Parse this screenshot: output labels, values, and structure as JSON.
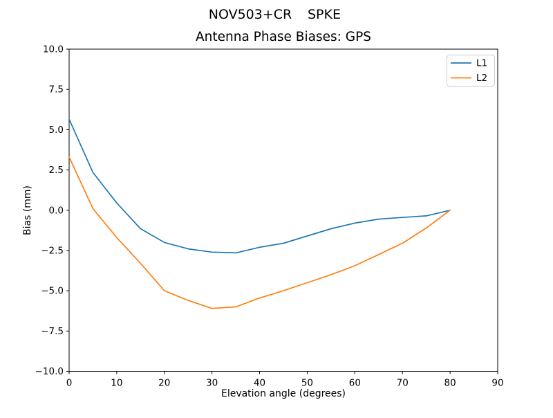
{
  "window": {
    "background": "#ffffff",
    "frame_color": "#000000"
  },
  "header": {
    "suptitle_left": "NOV503+CR",
    "suptitle_right": "SPKE"
  },
  "chart_data": {
    "type": "line",
    "title": "Antenna Phase Biases: GPS",
    "xlabel": "Elevation angle (degrees)",
    "ylabel": "Bias (mm)",
    "xlim": [
      0,
      90
    ],
    "ylim": [
      -10,
      10
    ],
    "x_ticks": [
      "0",
      "10",
      "20",
      "30",
      "40",
      "50",
      "60",
      "70",
      "80",
      "90"
    ],
    "y_ticks": [
      "10.0",
      "7.5",
      "5.0",
      "2.5",
      "0.0",
      "−2.5",
      "−5.0",
      "−7.5",
      "−10.0"
    ],
    "grid": false,
    "legend_position": "upper right",
    "x": [
      0,
      5,
      10,
      15,
      20,
      25,
      30,
      35,
      40,
      45,
      50,
      55,
      60,
      65,
      70,
      75,
      80
    ],
    "series": [
      {
        "name": "L1",
        "color": "#1f77b4",
        "values": [
          5.65,
          2.35,
          0.45,
          -1.15,
          -2.0,
          -2.4,
          -2.6,
          -2.65,
          -2.3,
          -2.05,
          -1.6,
          -1.15,
          -0.8,
          -0.55,
          -0.45,
          -0.35,
          0.0
        ]
      },
      {
        "name": "L2",
        "color": "#ff7f0e",
        "values": [
          3.3,
          0.1,
          -1.7,
          -3.3,
          -5.0,
          -5.6,
          -6.1,
          -6.0,
          -5.45,
          -5.0,
          -4.5,
          -4.0,
          -3.45,
          -2.75,
          -2.05,
          -1.1,
          0.0
        ]
      }
    ]
  }
}
